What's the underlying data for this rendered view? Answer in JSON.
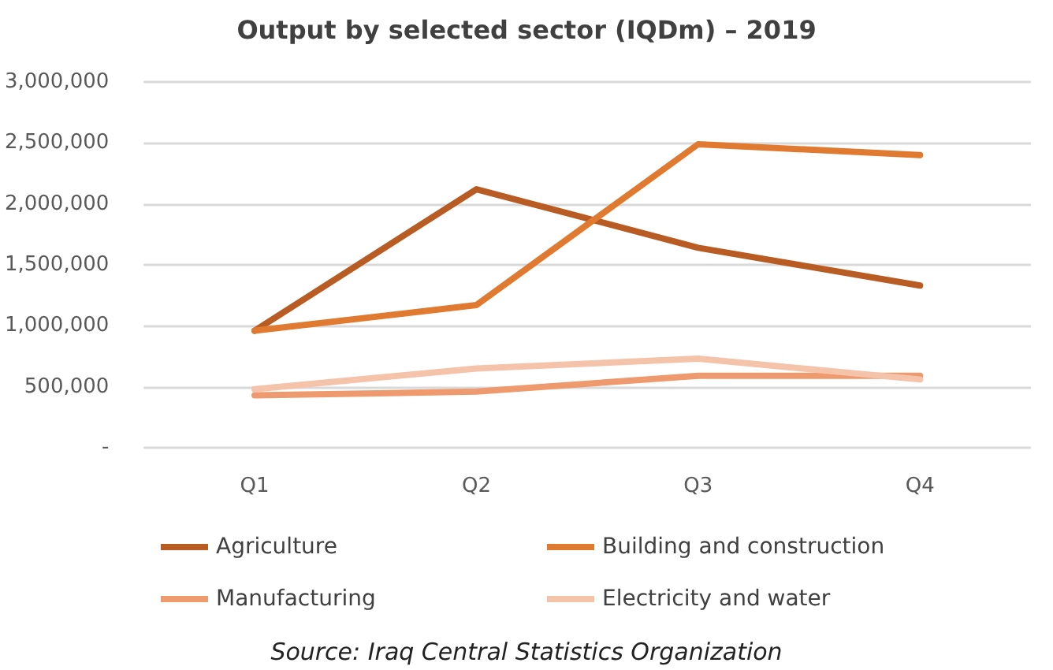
{
  "chart_data": {
    "type": "line",
    "title": "Output by selected sector (IQDm) – 2019",
    "categories": [
      "Q1",
      "Q2",
      "Q3",
      "Q4"
    ],
    "series": [
      {
        "name": "Agriculture",
        "color": "#b95c23",
        "values": [
          960000,
          2120000,
          1640000,
          1330000
        ]
      },
      {
        "name": "Building and construction",
        "color": "#e07a30",
        "values": [
          960000,
          1170000,
          2490000,
          2400000
        ]
      },
      {
        "name": "Manufacturing",
        "color": "#ee9a6e",
        "values": [
          430000,
          460000,
          590000,
          590000
        ]
      },
      {
        "name": "Electricity and water",
        "color": "#f5c2aa",
        "values": [
          480000,
          650000,
          730000,
          560000
        ]
      }
    ],
    "ylim": [
      0,
      3000000
    ],
    "yticks": [
      {
        "value": 0,
        "label": "-"
      },
      {
        "value": 500000,
        "label": "500,000"
      },
      {
        "value": 1000000,
        "label": "1,000,000"
      },
      {
        "value": 1500000,
        "label": "1,500,000"
      },
      {
        "value": 2000000,
        "label": "2,000,000"
      },
      {
        "value": 2500000,
        "label": "2,500,000"
      },
      {
        "value": 3000000,
        "label": "3,000,000"
      }
    ],
    "grid": "y",
    "legend": "bottom",
    "marker": "none",
    "line_style": "solid",
    "annotations": [
      "Source: Iraq Central Statistics Organization"
    ]
  }
}
